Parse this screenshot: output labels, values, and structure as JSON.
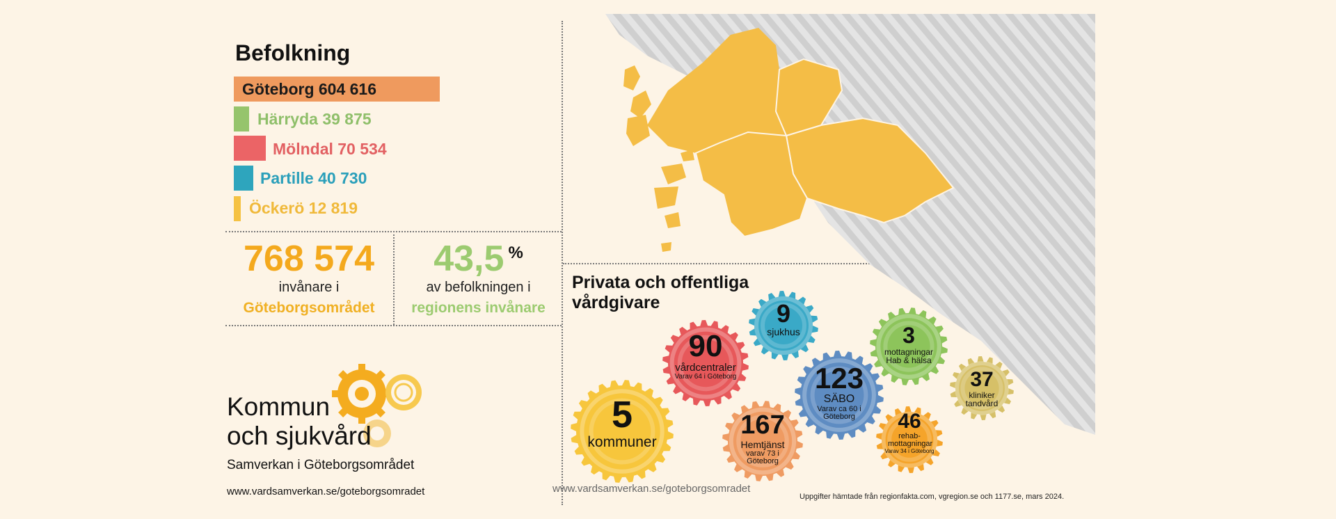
{
  "population": {
    "title": "Befolkning",
    "bars": [
      {
        "label": "Göteborg 604 616",
        "value": 604616,
        "color": "#ef9a5e",
        "text_color": "#1a1a1a"
      },
      {
        "label": "Härryda 39 875",
        "value": 39875,
        "color": "#96c46c",
        "text_color": "#8fbf6a"
      },
      {
        "label": "Mölndal 70 534",
        "value": 70534,
        "color": "#eb6466",
        "text_color": "#e26062"
      },
      {
        "label": "Partille 40 730",
        "value": 40730,
        "color": "#2ea5bd",
        "text_color": "#2a9fba"
      },
      {
        "label": "Öckerö 12 819",
        "value": 12819,
        "color": "#f5c243",
        "text_color": "#f0b93a"
      }
    ]
  },
  "totals": {
    "inhabitants": {
      "number": "768 574",
      "line1": "invånare i",
      "line2": "Göteborgsområdet"
    },
    "share": {
      "number": "43,5",
      "unit": "%",
      "line1": "av befolkningen i",
      "line2": "regionens invånare"
    }
  },
  "brand": {
    "line1": "Kommun",
    "line2": "och sjukvård",
    "tagline": "Samverkan i Göteborgsområdet",
    "url": "www.vardsamverkan.se/goteborgsomradet"
  },
  "overlay_url": "www.vardsamverkan.se/goteborgsomradet",
  "providers": {
    "title_line1": "Privata och offentliga",
    "title_line2": "vårdgivare",
    "gears": [
      {
        "number": "5",
        "label": "kommuner",
        "note": "",
        "color": "#f7c63c"
      },
      {
        "number": "90",
        "label": "vårdcentraler",
        "note": "Varav 64 i Göteborg",
        "color": "#e7585a"
      },
      {
        "number": "9",
        "label": "sjukhus",
        "note": "",
        "color": "#3aa9c7"
      },
      {
        "number": "167",
        "label": "Hemtjänst",
        "note": "varav 73 i Göteborg",
        "color": "#ef9b62"
      },
      {
        "number": "123",
        "label": "SÄBO",
        "note": "Varav ca 60 i Göteborg",
        "color": "#5e8cc2"
      },
      {
        "number": "3",
        "label": "mottagningar",
        "note": "Hab & hälsa",
        "color": "#8dc45b"
      },
      {
        "number": "46",
        "label": "rehab-mottagningar",
        "note": "Varav 34 i Göteborg",
        "color": "#f5a42a"
      },
      {
        "number": "37",
        "label": "kliniker",
        "note": "tandvård",
        "color": "#d6c068"
      }
    ]
  },
  "source_note": "Uppgifter hämtade från regionfakta.com, vgregion.se och 1177.se, mars 2024."
}
